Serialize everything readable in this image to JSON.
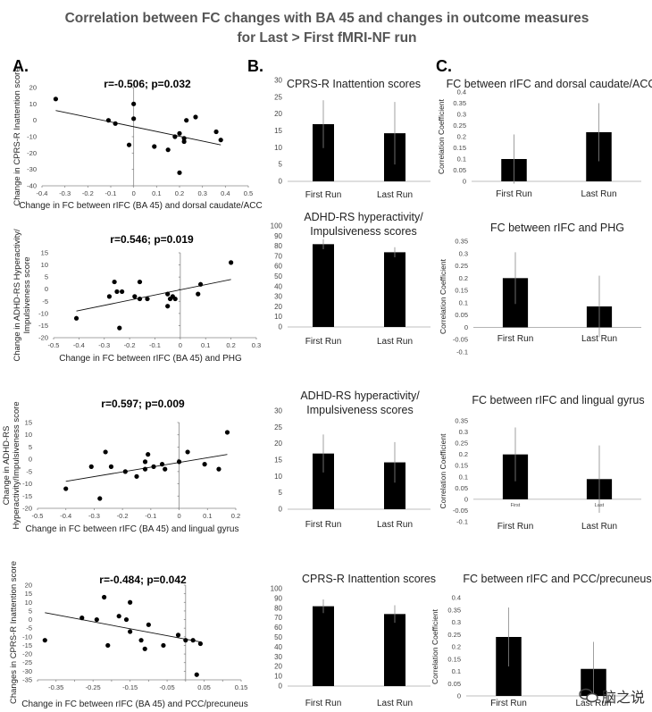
{
  "title_line1": "Correlation between FC changes with BA 45 and changes in outcome measures",
  "title_line2": "for Last > First fMRI-NF run",
  "panel_labels": [
    "A.",
    "B.",
    "C."
  ],
  "watermark": "脑之说",
  "chart_data": [
    {
      "id": "A1",
      "type": "scatter",
      "stat_label": "r=-0.506; p=0.032",
      "xlabel": "Change in FC between rIFC (BA 45) and dorsal caudate/ACC",
      "ylabel": "Change in CPRS-R Inattention score",
      "xlim": [
        -0.4,
        0.5
      ],
      "ylim": [
        -40,
        20
      ],
      "xticks": [
        -0.4,
        -0.3,
        -0.2,
        -0.1,
        0,
        0.1,
        0.2,
        0.3,
        0.4,
        0.5
      ],
      "xtick_labels": [
        "-0.4",
        "-0.3",
        "-0.2",
        "-0.1",
        "0",
        "0.1",
        "0.2",
        "0.3",
        "0.4",
        "0.5"
      ],
      "yticks": [
        20,
        10,
        0,
        -10,
        -20,
        -30,
        -40
      ],
      "points": [
        [
          -0.34,
          13
        ],
        [
          -0.11,
          0
        ],
        [
          -0.08,
          -2
        ],
        [
          0.0,
          1
        ],
        [
          0.0,
          10
        ],
        [
          -0.02,
          -15
        ],
        [
          0.09,
          -16
        ],
        [
          0.15,
          -18
        ],
        [
          0.18,
          -10
        ],
        [
          0.2,
          -8
        ],
        [
          0.22,
          -11
        ],
        [
          0.22,
          -13
        ],
        [
          0.23,
          0
        ],
        [
          0.27,
          2
        ],
        [
          0.36,
          -7
        ],
        [
          0.38,
          -12
        ],
        [
          0.2,
          -32
        ]
      ],
      "trend": [
        [
          -0.34,
          6
        ],
        [
          0.38,
          -15
        ]
      ]
    },
    {
      "id": "A2",
      "type": "scatter",
      "stat_label": "r=0.546; p=0.019",
      "xlabel": "Change in FC between rIFC (BA 45) and PHG",
      "ylabel": [
        "Change in ADHD-RS Hyperactivity/",
        "Impulsiveness  score"
      ],
      "xlim": [
        -0.5,
        0.3
      ],
      "ylim": [
        -20,
        15
      ],
      "xticks": [
        -0.5,
        -0.4,
        -0.3,
        -0.2,
        -0.1,
        0,
        0.1,
        0.2,
        0.3
      ],
      "xtick_labels": [
        "-0.5",
        "-0.4",
        "-0.3",
        "-0.2",
        "-0.1",
        "0",
        "0.1",
        "0.2",
        "0.3"
      ],
      "yticks": [
        15,
        10,
        5,
        0,
        -5,
        -10,
        -15,
        -20
      ],
      "points": [
        [
          -0.41,
          -12
        ],
        [
          -0.28,
          -3
        ],
        [
          -0.26,
          3
        ],
        [
          -0.25,
          -1
        ],
        [
          -0.23,
          -1
        ],
        [
          -0.24,
          -16
        ],
        [
          -0.18,
          -3
        ],
        [
          -0.16,
          3
        ],
        [
          -0.16,
          -4
        ],
        [
          -0.13,
          -4
        ],
        [
          -0.05,
          -2
        ],
        [
          -0.05,
          -7
        ],
        [
          -0.04,
          -4
        ],
        [
          -0.03,
          -3
        ],
        [
          -0.02,
          -4
        ],
        [
          0.07,
          -2
        ],
        [
          0.08,
          2
        ],
        [
          0.2,
          11
        ]
      ],
      "trend": [
        [
          -0.41,
          -9
        ],
        [
          0.2,
          4
        ]
      ]
    },
    {
      "id": "A3",
      "type": "scatter",
      "stat_label": "r=0.597; p=0.009",
      "xlabel": "Change in FC between rIFC (BA 45) and lingual gyrus",
      "ylabel": [
        "Change in ADHD-RS",
        "Hyperactivity/Impulsiveness score"
      ],
      "xlim": [
        -0.5,
        0.2
      ],
      "ylim": [
        -20,
        15
      ],
      "xticks": [
        -0.5,
        -0.4,
        -0.3,
        -0.2,
        -0.1,
        0,
        0.1,
        0.2
      ],
      "xtick_labels": [
        "-0.5",
        "-0.4",
        "-0.3",
        "-0.2",
        "-0.1",
        "0",
        "0.1",
        "0.2"
      ],
      "yticks": [
        15,
        10,
        5,
        0,
        -5,
        -10,
        -15,
        -20
      ],
      "points": [
        [
          -0.4,
          -12
        ],
        [
          -0.31,
          -3
        ],
        [
          -0.28,
          -16
        ],
        [
          -0.26,
          3
        ],
        [
          -0.24,
          -3
        ],
        [
          -0.19,
          -5
        ],
        [
          -0.15,
          -7
        ],
        [
          -0.12,
          -4
        ],
        [
          -0.12,
          -1
        ],
        [
          -0.11,
          2
        ],
        [
          -0.09,
          -3
        ],
        [
          -0.06,
          -2
        ],
        [
          -0.05,
          -4
        ],
        [
          0.0,
          -1
        ],
        [
          0.03,
          3
        ],
        [
          0.09,
          -2
        ],
        [
          0.14,
          -4
        ],
        [
          0.17,
          11
        ]
      ],
      "trend": [
        [
          -0.4,
          -9
        ],
        [
          0.17,
          2
        ]
      ]
    },
    {
      "id": "A4",
      "type": "scatter",
      "stat_label": "r=-0.484; p=0.042",
      "xlabel": "Change in FC between rIFC (BA 45) and PCC/precuneus",
      "ylabel": "Changes in CPRS-R Inattention score",
      "xlim": [
        -0.4,
        0.15
      ],
      "ylim": [
        -35,
        20
      ],
      "xticks": [
        -0.4,
        -0.35,
        -0.3,
        -0.25,
        -0.2,
        -0.15,
        -0.1,
        -0.05,
        0,
        0.05,
        0.1,
        0.15
      ],
      "xtick_labels": [
        "",
        "-0.35",
        "",
        "-0.25",
        "",
        "-0.15",
        "",
        "-0.05",
        "",
        "0.05",
        "",
        "0.15"
      ],
      "yticks": [
        20,
        15,
        10,
        5,
        0,
        -5,
        -10,
        -15,
        -20,
        -25,
        -30,
        -35
      ],
      "points": [
        [
          -0.38,
          -12
        ],
        [
          -0.28,
          1
        ],
        [
          -0.24,
          0
        ],
        [
          -0.22,
          13
        ],
        [
          -0.21,
          -15
        ],
        [
          -0.18,
          2
        ],
        [
          -0.16,
          0
        ],
        [
          -0.15,
          -7
        ],
        [
          -0.15,
          10
        ],
        [
          -0.12,
          -12
        ],
        [
          -0.11,
          -17
        ],
        [
          -0.1,
          -3
        ],
        [
          -0.06,
          -15
        ],
        [
          -0.02,
          -9
        ],
        [
          0.0,
          -12
        ],
        [
          0.02,
          -12
        ],
        [
          0.04,
          -14
        ],
        [
          0.03,
          -32
        ]
      ],
      "trend": [
        [
          -0.38,
          4
        ],
        [
          0.04,
          -13
        ]
      ]
    },
    {
      "id": "B1",
      "type": "bar",
      "title": "CPRS-R Inattention scores",
      "categories": [
        "First Run",
        "Last Run"
      ],
      "values": [
        17,
        14.3
      ],
      "errors": [
        7.1,
        9.3
      ],
      "ylim": [
        0,
        30
      ],
      "yticks": [
        0,
        5,
        10,
        15,
        20,
        25,
        30
      ]
    },
    {
      "id": "B2",
      "type": "bar",
      "title": [
        "ADHD-RS hyperactivity/",
        "Impulsiveness scores"
      ],
      "categories": [
        "First Run",
        "Last Run"
      ],
      "values": [
        82,
        74
      ],
      "errors": [
        5,
        5
      ],
      "ylim": [
        0,
        100
      ],
      "yticks": [
        0,
        10,
        20,
        30,
        40,
        50,
        60,
        70,
        80,
        90,
        100
      ]
    },
    {
      "id": "B3",
      "type": "bar",
      "title": [
        "ADHD-RS hyperactivity/",
        "Impulsiveness scores"
      ],
      "categories": [
        "First Run",
        "Last Run"
      ],
      "values": [
        17,
        14.3
      ],
      "errors": [
        5.8,
        6.2
      ],
      "ylim": [
        0,
        30
      ],
      "yticks": [
        0,
        5,
        10,
        15,
        20,
        25,
        30
      ]
    },
    {
      "id": "B4",
      "type": "bar",
      "title": "CPRS-R Inattention scores",
      "categories": [
        "First Run",
        "Last Run"
      ],
      "values": [
        82,
        74
      ],
      "errors": [
        7,
        9
      ],
      "ylim": [
        0,
        100
      ],
      "yticks": [
        0,
        10,
        20,
        30,
        40,
        50,
        60,
        70,
        80,
        90,
        100
      ]
    },
    {
      "id": "C1",
      "type": "bar",
      "title": "FC between rIFC and dorsal caudate/ACC",
      "ylabel": "Correlation Coefficient",
      "categories": [
        "First Run",
        "Last Run"
      ],
      "values": [
        0.1,
        0.22
      ],
      "errors": [
        0.11,
        0.13
      ],
      "ylim": [
        0,
        0.4
      ],
      "yticks": [
        0,
        0.05,
        0.1,
        0.15,
        0.2,
        0.25,
        0.3,
        0.35,
        0.4
      ],
      "ytick_labels": [
        "0",
        "0.05",
        "0.1",
        "0.15",
        "0.2",
        "0.25",
        "0.3",
        "0.35",
        "0.4"
      ]
    },
    {
      "id": "C2",
      "type": "bar",
      "title": "FC between rIFC and PHG",
      "ylabel": "Correlation Coefficient",
      "categories": [
        "First Run",
        "Last Run"
      ],
      "values": [
        0.2,
        0.085
      ],
      "errors": [
        0.105,
        0.125
      ],
      "ylim": [
        -0.1,
        0.35
      ],
      "yticks": [
        -0.1,
        -0.05,
        0,
        0.05,
        0.1,
        0.15,
        0.2,
        0.25,
        0.3,
        0.35
      ],
      "ytick_labels": [
        "-0.1",
        "-0.05",
        "0",
        "0.05",
        "0.1",
        "0.15",
        "0.2",
        "0.25",
        "0.3",
        "0.35"
      ]
    },
    {
      "id": "C3",
      "type": "bar",
      "title": "FC between rIFC and lingual gyrus",
      "ylabel": "Correlation Coefficient",
      "categories": [
        "First Run",
        "Last Run"
      ],
      "bar_labels": [
        "First",
        "Last"
      ],
      "values": [
        0.2,
        0.09
      ],
      "errors": [
        0.12,
        0.15
      ],
      "ylim": [
        -0.1,
        0.35
      ],
      "yticks": [
        -0.1,
        -0.05,
        0,
        0.05,
        0.1,
        0.15,
        0.2,
        0.25,
        0.3,
        0.35
      ],
      "ytick_labels": [
        "-0.1",
        "-0.05",
        "0",
        "0.05",
        "0.1",
        "0.15",
        "0.2",
        "0.25",
        "0.3",
        "0.35"
      ]
    },
    {
      "id": "C4",
      "type": "bar",
      "title": "FC between rIFC and PCC/precuneus",
      "ylabel": "Correlation Coefficient",
      "categories": [
        "First Run",
        "Last Run"
      ],
      "values": [
        0.24,
        0.11
      ],
      "errors": [
        0.12,
        0.11
      ],
      "ylim": [
        0,
        0.4
      ],
      "yticks": [
        0,
        0.05,
        0.1,
        0.15,
        0.2,
        0.25,
        0.3,
        0.35,
        0.4
      ],
      "ytick_labels": [
        "0",
        "0.05",
        "0.1",
        "0.15",
        "0.2",
        "0.25",
        "0.3",
        "0.35",
        "0.4"
      ]
    }
  ]
}
